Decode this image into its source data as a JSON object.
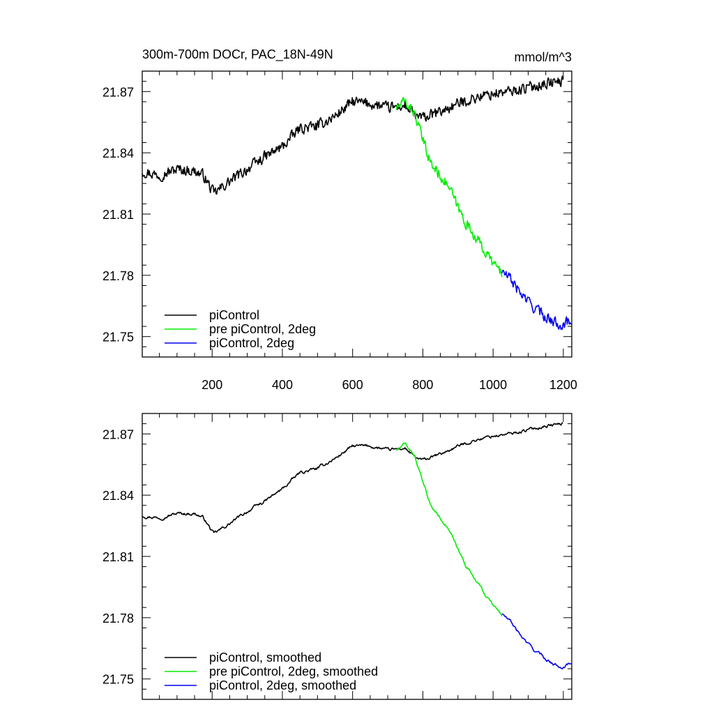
{
  "figure": {
    "title_left": "300m-700m DOCr, PAC_18N-49N",
    "title_right": "mmol/m^3"
  },
  "chart_data": [
    {
      "type": "line",
      "panel": "top",
      "title": "300m-700m DOCr, PAC_18N-49N",
      "units": "mmol/m^3",
      "xlabel": "",
      "ylabel": "",
      "xlim": [
        1,
        1224
      ],
      "ylim": [
        21.74,
        21.88
      ],
      "x_ticks": [
        200,
        400,
        600,
        800,
        1000,
        1200
      ],
      "x_tick_labels": [
        "200",
        "400",
        "600",
        "800",
        "1000",
        "1200"
      ],
      "y_ticks": [
        21.75,
        21.78,
        21.81,
        21.84,
        21.87
      ],
      "y_tick_labels": [
        "21.75",
        "21.78",
        "21.81",
        "21.84",
        "21.87"
      ],
      "legend_position": "bottom-left",
      "series": [
        {
          "name": "piControl",
          "color": "#000000",
          "x": [
            1,
            50,
            100,
            150,
            175,
            205,
            250,
            300,
            350,
            400,
            450,
            500,
            550,
            600,
            650,
            700,
            750,
            780,
            800,
            850,
            900,
            950,
            1000,
            1050,
            1100,
            1150,
            1200
          ],
          "y": [
            21.831,
            21.829,
            21.832,
            21.831,
            21.829,
            21.82,
            21.826,
            21.832,
            21.838,
            21.843,
            21.852,
            21.853,
            21.858,
            21.865,
            21.864,
            21.862,
            21.863,
            21.858,
            21.857,
            21.86,
            21.864,
            21.867,
            21.869,
            21.87,
            21.872,
            21.874,
            21.875
          ]
        },
        {
          "name": "pre piControl, 2deg",
          "color": "#00ee00",
          "x": [
            725,
            750,
            775,
            800,
            825,
            850,
            875,
            900,
            925,
            950,
            975,
            1000,
            1025
          ],
          "y": [
            21.862,
            21.865,
            21.86,
            21.846,
            21.834,
            21.829,
            21.823,
            21.813,
            21.805,
            21.799,
            21.792,
            21.786,
            21.781
          ]
        },
        {
          "name": "piControl, 2deg",
          "color": "#0000ee",
          "x": [
            1025,
            1050,
            1075,
            1100,
            1125,
            1150,
            1175,
            1200,
            1224
          ],
          "y": [
            21.782,
            21.778,
            21.772,
            21.767,
            21.763,
            21.76,
            21.757,
            21.756,
            21.758
          ]
        }
      ]
    },
    {
      "type": "line",
      "panel": "bottom",
      "xlim": [
        1,
        1224
      ],
      "ylim": [
        21.74,
        21.88
      ],
      "x_ticks": [
        200,
        400,
        600,
        800,
        1000,
        1200
      ],
      "y_ticks": [
        21.75,
        21.78,
        21.81,
        21.84,
        21.87
      ],
      "y_tick_labels": [
        "21.75",
        "21.78",
        "21.81",
        "21.84",
        "21.87"
      ],
      "legend_position": "bottom-left",
      "series": [
        {
          "name": "piControl, smoothed",
          "color": "#000000",
          "x": [
            1,
            50,
            100,
            150,
            175,
            205,
            250,
            300,
            350,
            400,
            450,
            500,
            550,
            600,
            650,
            700,
            750,
            780,
            800,
            850,
            900,
            950,
            1000,
            1050,
            1100,
            1150,
            1200
          ],
          "y": [
            21.83,
            21.829,
            21.831,
            21.831,
            21.829,
            21.821,
            21.826,
            21.832,
            21.837,
            21.843,
            21.851,
            21.853,
            21.858,
            21.864,
            21.864,
            21.862,
            21.863,
            21.858,
            21.857,
            21.86,
            21.864,
            21.867,
            21.869,
            21.87,
            21.872,
            21.874,
            21.875
          ]
        },
        {
          "name": "pre piControl, 2deg, smoothed",
          "color": "#00ee00",
          "x": [
            725,
            750,
            775,
            800,
            825,
            850,
            875,
            900,
            925,
            950,
            975,
            1000,
            1025
          ],
          "y": [
            21.862,
            21.865,
            21.86,
            21.846,
            21.834,
            21.829,
            21.823,
            21.813,
            21.805,
            21.799,
            21.792,
            21.786,
            21.781
          ]
        },
        {
          "name": "piControl, 2deg, smoothed",
          "color": "#0000ee",
          "x": [
            1025,
            1050,
            1075,
            1100,
            1125,
            1150,
            1175,
            1200,
            1224
          ],
          "y": [
            21.782,
            21.778,
            21.772,
            21.767,
            21.763,
            21.76,
            21.757,
            21.756,
            21.758
          ]
        }
      ]
    }
  ]
}
